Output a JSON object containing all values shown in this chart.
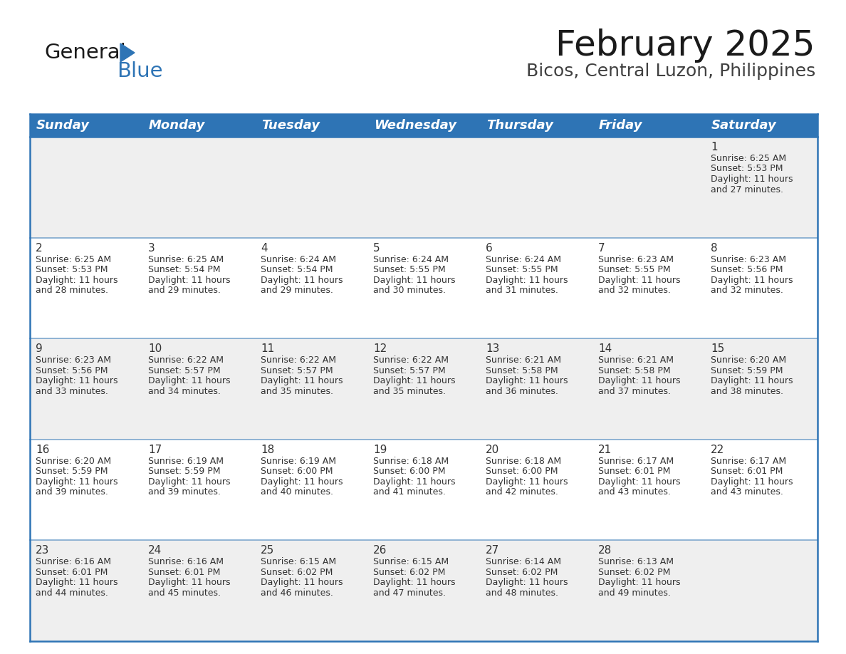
{
  "title": "February 2025",
  "subtitle": "Bicos, Central Luzon, Philippines",
  "header_bg": "#2E74B5",
  "header_text_color": "#FFFFFF",
  "row_bg_gray": "#EFEFEF",
  "row_bg_white": "#FFFFFF",
  "cell_border_color": "#2E74B5",
  "separator_color": "#AAAACC",
  "day_headers": [
    "Sunday",
    "Monday",
    "Tuesday",
    "Wednesday",
    "Thursday",
    "Friday",
    "Saturday"
  ],
  "days_data": [
    {
      "day": 1,
      "col": 6,
      "row": 0,
      "sunrise": "6:25 AM",
      "sunset": "5:53 PM",
      "daylight_h": "11 hours",
      "daylight_m": "27 minutes."
    },
    {
      "day": 2,
      "col": 0,
      "row": 1,
      "sunrise": "6:25 AM",
      "sunset": "5:53 PM",
      "daylight_h": "11 hours",
      "daylight_m": "28 minutes."
    },
    {
      "day": 3,
      "col": 1,
      "row": 1,
      "sunrise": "6:25 AM",
      "sunset": "5:54 PM",
      "daylight_h": "11 hours",
      "daylight_m": "29 minutes."
    },
    {
      "day": 4,
      "col": 2,
      "row": 1,
      "sunrise": "6:24 AM",
      "sunset": "5:54 PM",
      "daylight_h": "11 hours",
      "daylight_m": "29 minutes."
    },
    {
      "day": 5,
      "col": 3,
      "row": 1,
      "sunrise": "6:24 AM",
      "sunset": "5:55 PM",
      "daylight_h": "11 hours",
      "daylight_m": "30 minutes."
    },
    {
      "day": 6,
      "col": 4,
      "row": 1,
      "sunrise": "6:24 AM",
      "sunset": "5:55 PM",
      "daylight_h": "11 hours",
      "daylight_m": "31 minutes."
    },
    {
      "day": 7,
      "col": 5,
      "row": 1,
      "sunrise": "6:23 AM",
      "sunset": "5:55 PM",
      "daylight_h": "11 hours",
      "daylight_m": "32 minutes."
    },
    {
      "day": 8,
      "col": 6,
      "row": 1,
      "sunrise": "6:23 AM",
      "sunset": "5:56 PM",
      "daylight_h": "11 hours",
      "daylight_m": "32 minutes."
    },
    {
      "day": 9,
      "col": 0,
      "row": 2,
      "sunrise": "6:23 AM",
      "sunset": "5:56 PM",
      "daylight_h": "11 hours",
      "daylight_m": "33 minutes."
    },
    {
      "day": 10,
      "col": 1,
      "row": 2,
      "sunrise": "6:22 AM",
      "sunset": "5:57 PM",
      "daylight_h": "11 hours",
      "daylight_m": "34 minutes."
    },
    {
      "day": 11,
      "col": 2,
      "row": 2,
      "sunrise": "6:22 AM",
      "sunset": "5:57 PM",
      "daylight_h": "11 hours",
      "daylight_m": "35 minutes."
    },
    {
      "day": 12,
      "col": 3,
      "row": 2,
      "sunrise": "6:22 AM",
      "sunset": "5:57 PM",
      "daylight_h": "11 hours",
      "daylight_m": "35 minutes."
    },
    {
      "day": 13,
      "col": 4,
      "row": 2,
      "sunrise": "6:21 AM",
      "sunset": "5:58 PM",
      "daylight_h": "11 hours",
      "daylight_m": "36 minutes."
    },
    {
      "day": 14,
      "col": 5,
      "row": 2,
      "sunrise": "6:21 AM",
      "sunset": "5:58 PM",
      "daylight_h": "11 hours",
      "daylight_m": "37 minutes."
    },
    {
      "day": 15,
      "col": 6,
      "row": 2,
      "sunrise": "6:20 AM",
      "sunset": "5:59 PM",
      "daylight_h": "11 hours",
      "daylight_m": "38 minutes."
    },
    {
      "day": 16,
      "col": 0,
      "row": 3,
      "sunrise": "6:20 AM",
      "sunset": "5:59 PM",
      "daylight_h": "11 hours",
      "daylight_m": "39 minutes."
    },
    {
      "day": 17,
      "col": 1,
      "row": 3,
      "sunrise": "6:19 AM",
      "sunset": "5:59 PM",
      "daylight_h": "11 hours",
      "daylight_m": "39 minutes."
    },
    {
      "day": 18,
      "col": 2,
      "row": 3,
      "sunrise": "6:19 AM",
      "sunset": "6:00 PM",
      "daylight_h": "11 hours",
      "daylight_m": "40 minutes."
    },
    {
      "day": 19,
      "col": 3,
      "row": 3,
      "sunrise": "6:18 AM",
      "sunset": "6:00 PM",
      "daylight_h": "11 hours",
      "daylight_m": "41 minutes."
    },
    {
      "day": 20,
      "col": 4,
      "row": 3,
      "sunrise": "6:18 AM",
      "sunset": "6:00 PM",
      "daylight_h": "11 hours",
      "daylight_m": "42 minutes."
    },
    {
      "day": 21,
      "col": 5,
      "row": 3,
      "sunrise": "6:17 AM",
      "sunset": "6:01 PM",
      "daylight_h": "11 hours",
      "daylight_m": "43 minutes."
    },
    {
      "day": 22,
      "col": 6,
      "row": 3,
      "sunrise": "6:17 AM",
      "sunset": "6:01 PM",
      "daylight_h": "11 hours",
      "daylight_m": "43 minutes."
    },
    {
      "day": 23,
      "col": 0,
      "row": 4,
      "sunrise": "6:16 AM",
      "sunset": "6:01 PM",
      "daylight_h": "11 hours",
      "daylight_m": "44 minutes."
    },
    {
      "day": 24,
      "col": 1,
      "row": 4,
      "sunrise": "6:16 AM",
      "sunset": "6:01 PM",
      "daylight_h": "11 hours",
      "daylight_m": "45 minutes."
    },
    {
      "day": 25,
      "col": 2,
      "row": 4,
      "sunrise": "6:15 AM",
      "sunset": "6:02 PM",
      "daylight_h": "11 hours",
      "daylight_m": "46 minutes."
    },
    {
      "day": 26,
      "col": 3,
      "row": 4,
      "sunrise": "6:15 AM",
      "sunset": "6:02 PM",
      "daylight_h": "11 hours",
      "daylight_m": "47 minutes."
    },
    {
      "day": 27,
      "col": 4,
      "row": 4,
      "sunrise": "6:14 AM",
      "sunset": "6:02 PM",
      "daylight_h": "11 hours",
      "daylight_m": "48 minutes."
    },
    {
      "day": 28,
      "col": 5,
      "row": 4,
      "sunrise": "6:13 AM",
      "sunset": "6:02 PM",
      "daylight_h": "11 hours",
      "daylight_m": "49 minutes."
    }
  ],
  "num_rows": 5,
  "num_cols": 7,
  "logo_text_general": "General",
  "logo_text_blue": "Blue",
  "logo_color_general": "#1a1a1a",
  "logo_color_blue": "#2E74B5",
  "logo_triangle_color": "#2E74B5",
  "title_fontsize": 36,
  "subtitle_fontsize": 18,
  "header_fontsize": 13,
  "day_num_fontsize": 11,
  "cell_text_fontsize": 9.0,
  "fig_width": 11.88,
  "fig_height": 9.18,
  "fig_dpi": 100
}
